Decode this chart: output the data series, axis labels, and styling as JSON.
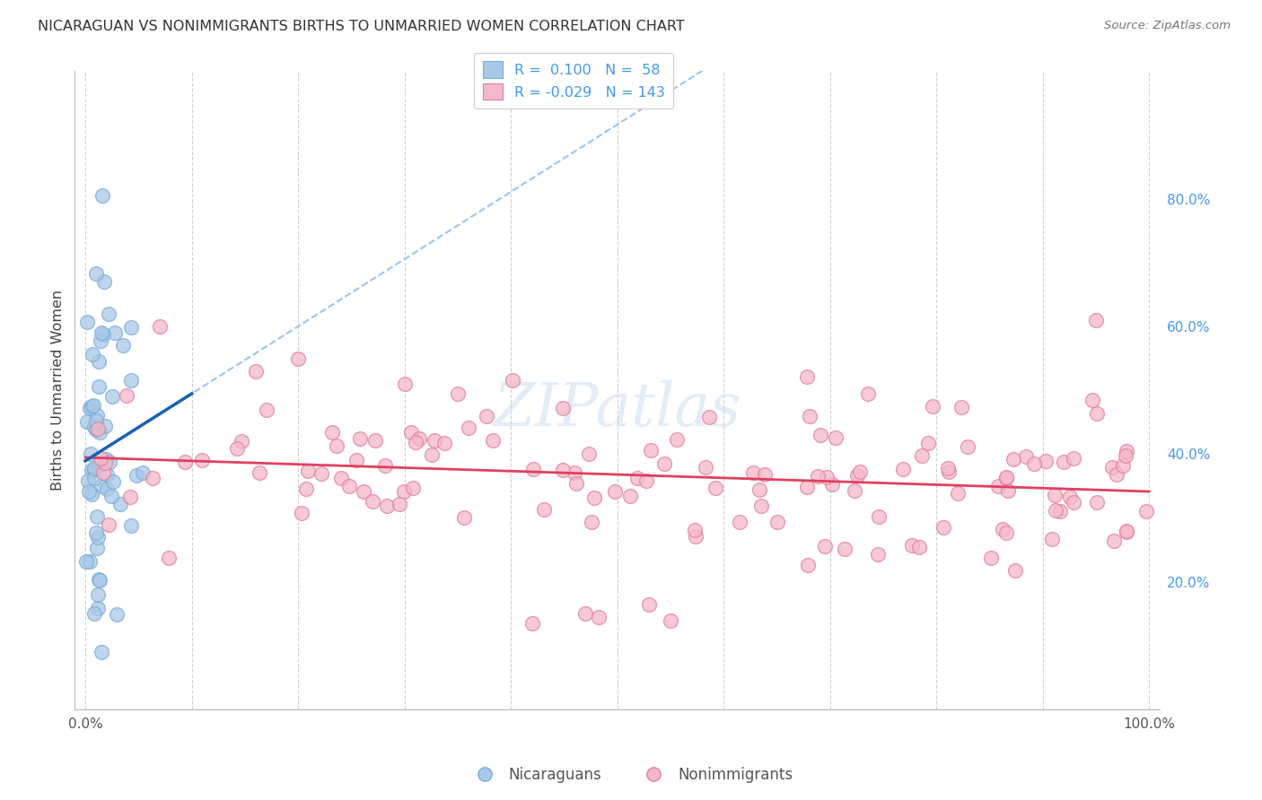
{
  "title": "NICARAGUAN VS NONIMMIGRANTS BIRTHS TO UNMARRIED WOMEN CORRELATION CHART",
  "source": "Source: ZipAtlas.com",
  "ylabel": "Births to Unmarried Women",
  "background_color": "#ffffff",
  "grid_color": "#cccccc",
  "right_axis_color": "#4499ee",
  "blue_color": "#a8c8e8",
  "blue_edge_color": "#7aadd4",
  "pink_color": "#f5b8c8",
  "pink_edge_color": "#e080a0",
  "trend_blue": "#1a5fb4",
  "trend_pink": "#e04060",
  "trend_dashed_color": "#88bbee",
  "watermark": "ZIPatlas",
  "watermark_color": "#c0d8f0",
  "xlim": [
    -1,
    101
  ],
  "ylim": [
    0,
    100
  ],
  "ytick_right_vals": [
    20,
    40,
    60,
    80
  ],
  "ytick_right_labels": [
    "20.0%",
    "40.0%",
    "60.0%",
    "80.0%"
  ],
  "blue_trend_intercept": 38.5,
  "blue_trend_slope": 0.42,
  "pink_trend_intercept": 38.8,
  "pink_trend_slope": -0.028
}
